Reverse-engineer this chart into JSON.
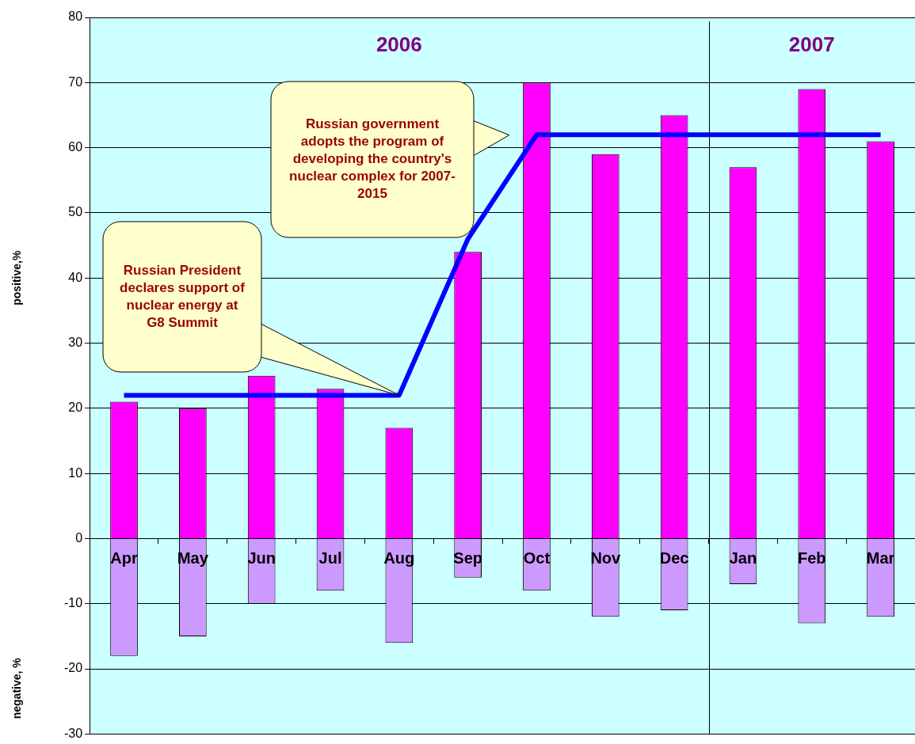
{
  "chart_data": {
    "type": "bar",
    "stacked": true,
    "ylabel": "positive,%",
    "categories": [
      "Apr",
      "May",
      "Jun",
      "Jul",
      "Aug",
      "Sep",
      "Oct",
      "Nov",
      "Dec",
      "Jan",
      "Feb",
      "Mar"
    ],
    "series": [
      {
        "color": "#ff00ff",
        "values": [
          21,
          20,
          25,
          23,
          17,
          44,
          70,
          59,
          65,
          57,
          69,
          61
        ]
      },
      {
        "color": "#cc99ff",
        "values": [
          -18,
          -15,
          -10,
          -8,
          -16,
          -6,
          -8,
          -12,
          -11,
          -7,
          -13,
          -12
        ]
      },
      {
        "type": "line",
        "color": "#0000ff",
        "values": [
          22,
          22,
          22,
          22,
          22,
          46,
          62,
          62,
          62,
          62,
          62,
          62
        ]
      }
    ],
    "ylim": [
      -30,
      80
    ],
    "yticks": [
      -30,
      -20,
      -10,
      0,
      10,
      20,
      30,
      40,
      50,
      60,
      70,
      80
    ],
    "grid": "y",
    "legend": false,
    "marker": "none",
    "line_style": "solid",
    "annotations": [
      "2006",
      "2007",
      {
        "text": "Russian President declares support of nuclear energy at G8 Summit",
        "x": "Aug",
        "y": 22
      },
      "Russian government adopts the program of developing the country's nuclear complex for 2007-2015",
      "negative, %"
    ]
  }
}
